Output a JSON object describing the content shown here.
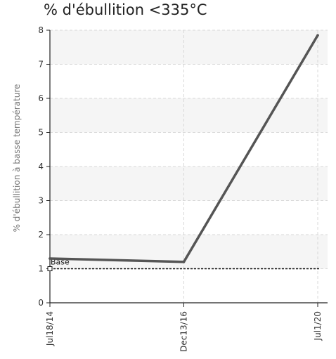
{
  "chart_data": {
    "type": "line",
    "title": "% d'ébullition <335°C",
    "xlabel": "",
    "ylabel": "% d'ébullition à basse température",
    "categories": [
      "Jul18/14",
      "Dec13/16",
      "Jul1/20"
    ],
    "series": [
      {
        "values": [
          1.3,
          1.2,
          7.85
        ],
        "color": "#555555"
      }
    ],
    "baseline": {
      "label": "Base",
      "value": 1.0,
      "style": "dotted",
      "color": "#111111"
    },
    "ylim": [
      0,
      8
    ],
    "yticks": [
      0,
      1,
      2,
      3,
      4,
      5,
      6,
      7,
      8
    ],
    "grid": true,
    "background_bands": true,
    "legend": "none"
  }
}
